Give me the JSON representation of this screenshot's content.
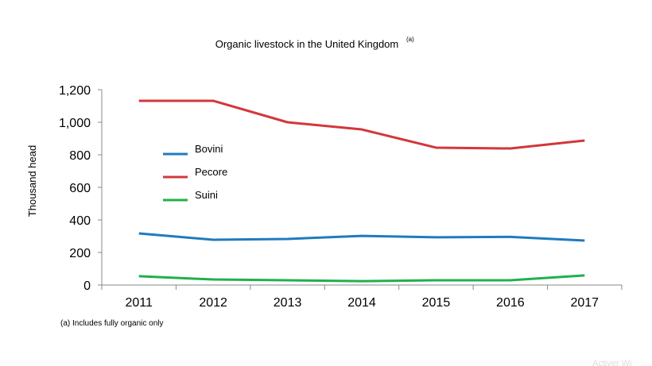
{
  "chart_data": {
    "type": "line",
    "title": "Organic livestock in the United Kingdom",
    "title_superscript": "(a)",
    "xlabel": "",
    "ylabel": "Thousand head",
    "categories": [
      "2011",
      "2012",
      "2013",
      "2014",
      "2015",
      "2016",
      "2017"
    ],
    "ylim": [
      0,
      1200
    ],
    "yticks": [
      0,
      200,
      400,
      600,
      800,
      1000,
      1200
    ],
    "ytick_labels": [
      "0",
      "200",
      "400",
      "600",
      "800",
      "1,000",
      "1,200"
    ],
    "grid": false,
    "legend_position": "upper-left inside plot",
    "series": [
      {
        "name": "Bovini",
        "color": "#1f7bbf",
        "values": [
          317,
          278,
          283,
          302,
          293,
          296,
          273
        ]
      },
      {
        "name": "Pecore",
        "color": "#d2373c",
        "values": [
          1132,
          1132,
          1000,
          956,
          844,
          839,
          888
        ]
      },
      {
        "name": "Suini",
        "color": "#21b04b",
        "values": [
          54,
          34,
          29,
          24,
          29,
          29,
          59
        ]
      }
    ],
    "footnote": "(a) Includes fully organic only"
  },
  "watermark": "Activer Wi"
}
